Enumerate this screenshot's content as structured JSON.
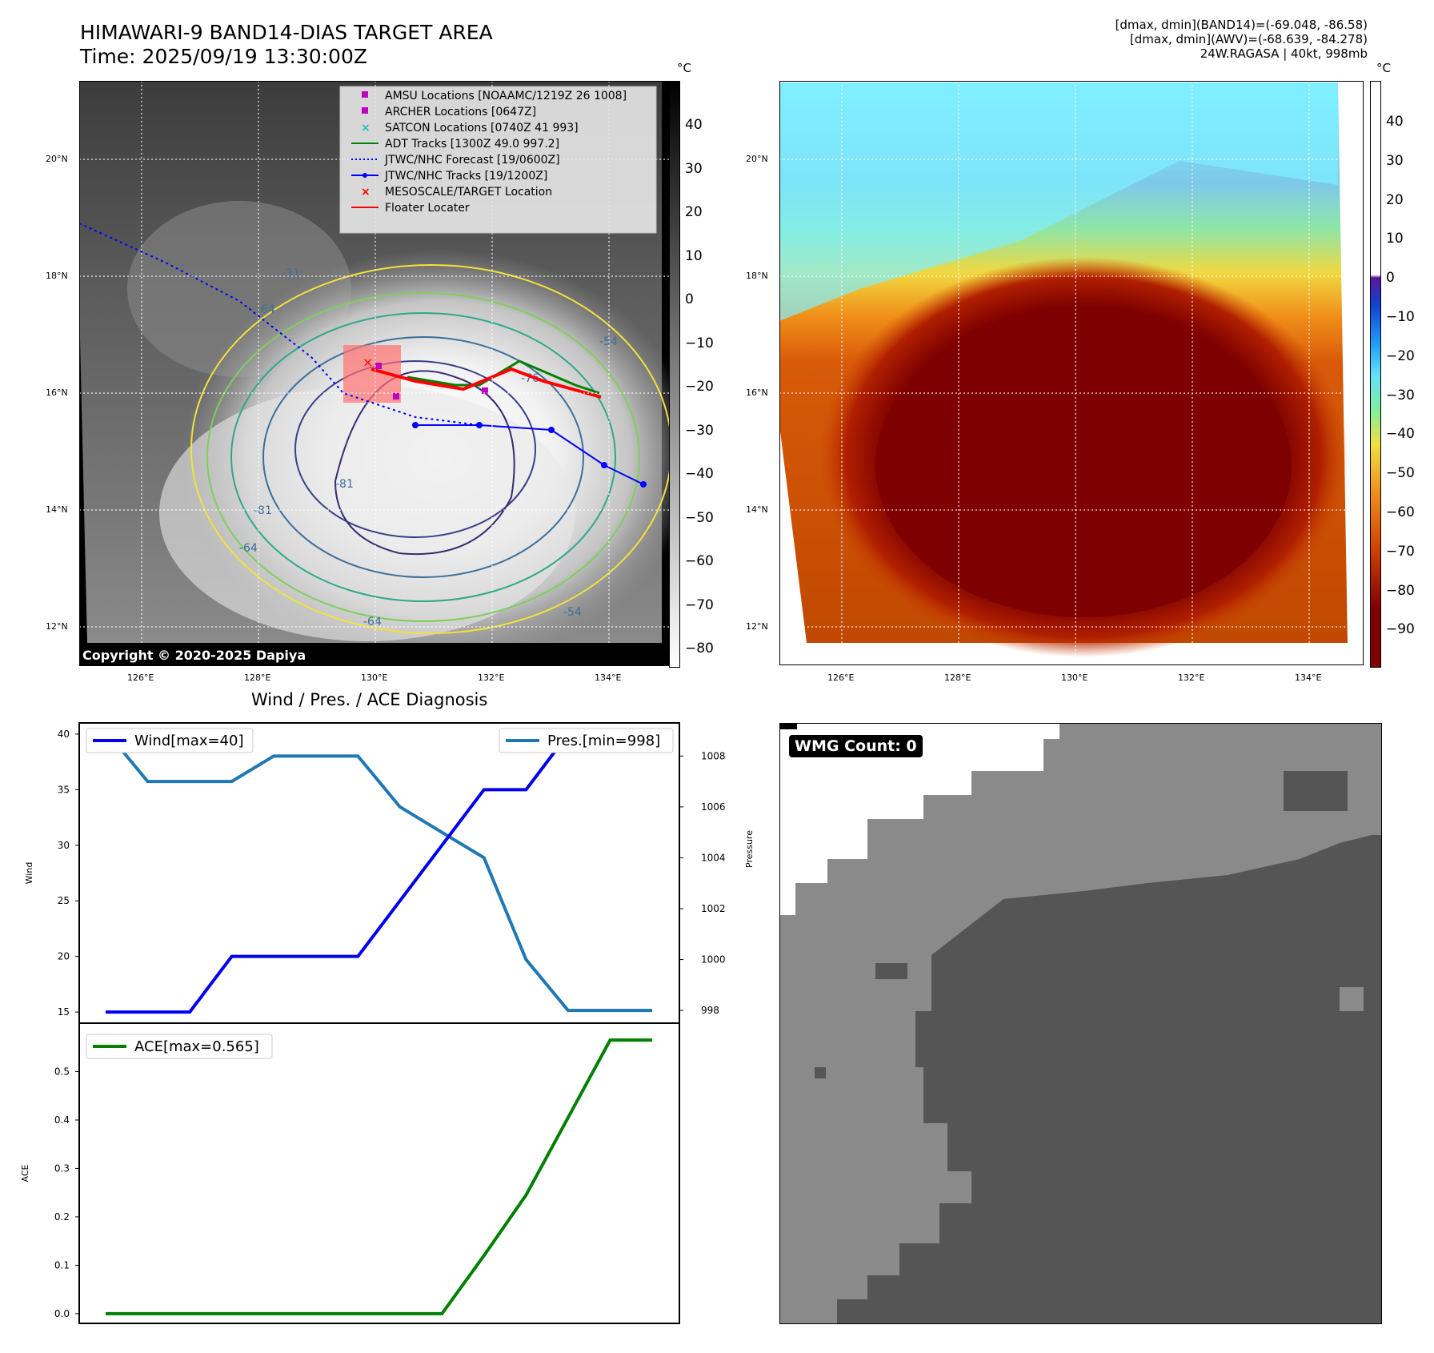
{
  "header": {
    "title_line1": "HIMAWARI-9 BAND14-DIAS TARGET AREA",
    "title_line2": "Time: 2025/09/19 13:30:00Z",
    "info_line1": "[dmax, dmin](BAND14)=(-69.048, -86.58)",
    "info_line2": "[dmax, dmin](AWV)=(-68.639, -84.278)",
    "info_line3": "24W.RAGASA | 40kt, 998mb"
  },
  "map_axes": {
    "lat_labels": [
      "20°N",
      "18°N",
      "16°N",
      "14°N",
      "12°N"
    ],
    "lon_labels": [
      "126°E",
      "128°E",
      "130°E",
      "132°E",
      "134°E"
    ]
  },
  "left_map": {
    "legend": [
      {
        "label": "AMSU Locations [NOAAMC/1219Z 26 1008]",
        "color": "#c000c0",
        "marker": "square"
      },
      {
        "label": "ARCHER Locations [0647Z]",
        "color": "#c000c0",
        "marker": "square"
      },
      {
        "label": "SATCON Locations [0740Z 41 993]",
        "color": "#20c0c0",
        "marker": "x"
      },
      {
        "label": "ADT Tracks [1300Z 49.0 997.2]",
        "color": "#008000",
        "marker": "line"
      },
      {
        "label": "JTWC/NHC Forecast [19/0600Z]",
        "color": "#0000ff",
        "marker": "dotted"
      },
      {
        "label": "JTWC/NHC Tracks [19/1200Z]",
        "color": "#0000ff",
        "marker": "line-dot"
      },
      {
        "label": "MESOSCALE/TARGET Location",
        "color": "#ff0000",
        "marker": "x"
      },
      {
        "label": "Floater Locater",
        "color": "#ff0000",
        "marker": "line"
      }
    ],
    "contour_labels": [
      "-31",
      "-64",
      "-54",
      "-76",
      "-81",
      "-81",
      "-64",
      "-64",
      "-54"
    ],
    "copyright": "Copyright © 2020-2025 Dapiya",
    "colorbar_unit": "°C",
    "colorbar_ticks": [
      "40",
      "30",
      "20",
      "10",
      "0",
      "−10",
      "−20",
      "−30",
      "−40",
      "−50",
      "−60",
      "−70",
      "−80"
    ]
  },
  "right_map": {
    "colorbar_unit": "°C",
    "colorbar_ticks": [
      "40",
      "30",
      "20",
      "10",
      "0",
      "−10",
      "−20",
      "−30",
      "−40",
      "−50",
      "−60",
      "−70",
      "−80",
      "−90"
    ]
  },
  "wmg": {
    "badge": "WMG Count: 0"
  },
  "chart_data": [
    {
      "type": "line",
      "title": "Wind / Pres. / ACE Diagnosis",
      "ylabel": "Wind",
      "ylabel2": "Pressure",
      "ylim": [
        14,
        41
      ],
      "ylim2": [
        997.5,
        1009.3
      ],
      "yticks": [
        15,
        20,
        25,
        30,
        35,
        40
      ],
      "yticks2": [
        998,
        1000,
        1002,
        1004,
        1006,
        1008
      ],
      "x": [
        0,
        1,
        2,
        3,
        4,
        5,
        6,
        7,
        8,
        9,
        10,
        11,
        12,
        13
      ],
      "series": [
        {
          "name": "Wind[max=40]",
          "axis": "left",
          "color": "#0000ee",
          "values": [
            15,
            15,
            15,
            20,
            20,
            20,
            20,
            25,
            30,
            35,
            35,
            40,
            40,
            40
          ]
        },
        {
          "name": "Pres.[min=998]",
          "axis": "right",
          "color": "#1f77b4",
          "values": [
            1009,
            1007,
            1007,
            1007,
            1008,
            1008,
            1008,
            1006,
            1005,
            1004,
            1000,
            998,
            998,
            998
          ]
        }
      ],
      "legend_left": "top-left",
      "legend_right": "top-right"
    },
    {
      "type": "line",
      "ylabel": "ACE",
      "ylim": [
        -0.02,
        0.6
      ],
      "yticks": [
        0.0,
        0.1,
        0.2,
        0.3,
        0.4,
        0.5
      ],
      "x": [
        0,
        1,
        2,
        3,
        4,
        5,
        6,
        7,
        8,
        9,
        10,
        11,
        12,
        13
      ],
      "series": [
        {
          "name": "ACE[max=0.565]",
          "color": "#008000",
          "values": [
            0,
            0,
            0,
            0,
            0,
            0,
            0,
            0,
            0,
            0.12,
            0.245,
            0.405,
            0.565,
            0.565
          ]
        }
      ],
      "legend": "top-left"
    }
  ]
}
